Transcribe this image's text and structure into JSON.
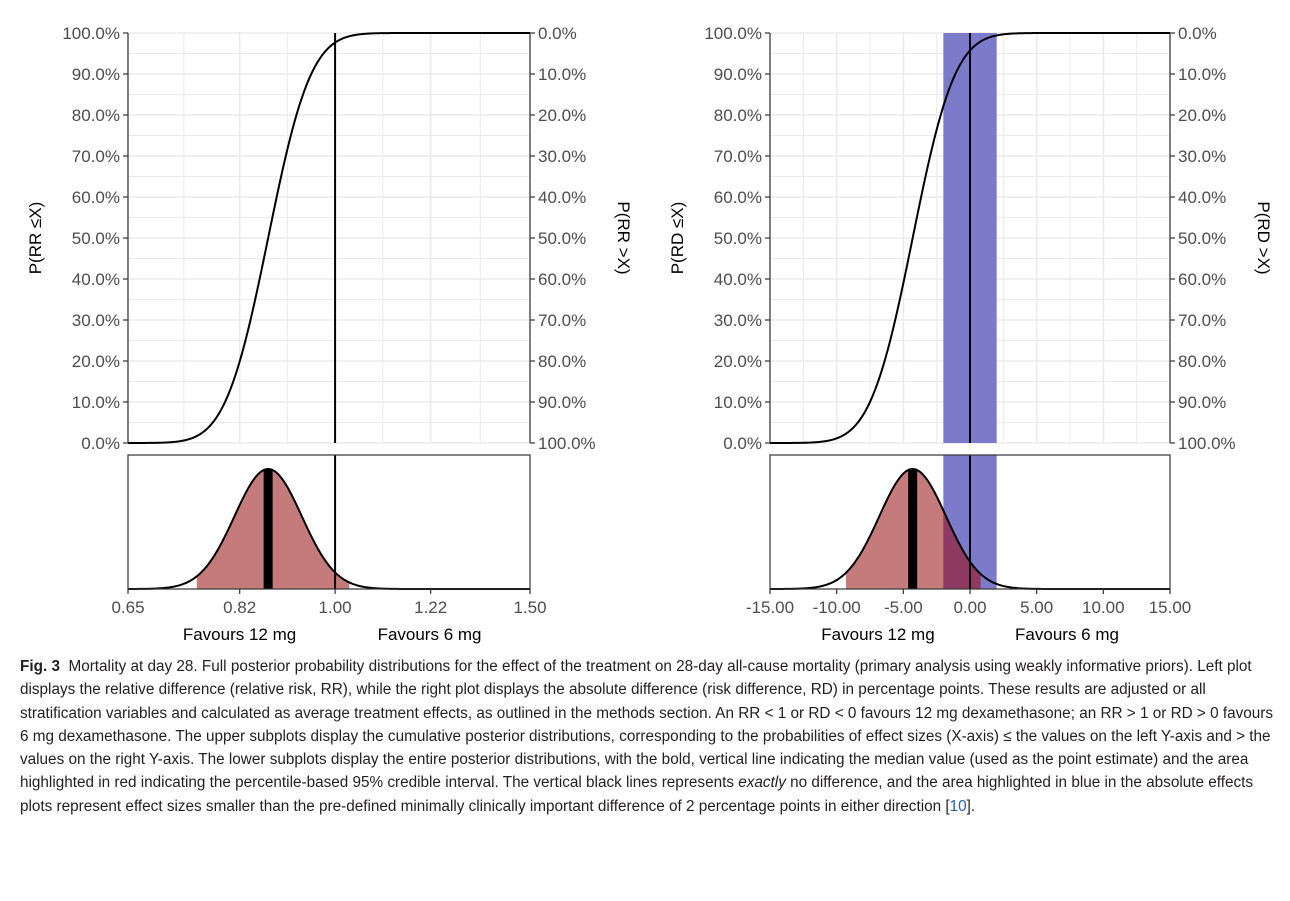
{
  "figure": {
    "label": "Fig. 3",
    "caption_text": "Mortality at day 28. Full posterior probability distributions for the effect of the treatment on 28-day all-cause mortality (primary analysis using weakly informative priors). Left plot displays the relative difference (relative risk, RR), while the right plot displays the absolute difference (risk difference, RD) in percentage points. These results are adjusted or all stratification variables and calculated as average treatment effects, as outlined in the methods section. An RR < 1 or RD < 0 favours 12 mg dexamethasone; an RR > 1 or RD > 0 favours 6 mg dexamethasone. The upper subplots display the cumulative posterior distributions, corresponding to the probabilities of effect sizes (X-axis) ≤ the values on the left Y-axis and > the values on the right Y-axis. The lower subplots display the entire posterior distributions, with the bold, vertical line indicating the median value (used as the point estimate) and the area highlighted in red indicating the percentile-based 95% credible interval. The vertical black lines represents",
    "caption_emph": "exactly",
    "caption_text2": "no difference, and the area highlighted in blue in the absolute effects plots represent effect sizes smaller than the pre-defined minimally clinically important difference of 2 percentage points in either direction [",
    "caption_ref": "10",
    "caption_end": "]."
  },
  "colors": {
    "credible_interval_fill": "#c57b7b",
    "mcid_fill": "#7b7bc9",
    "overlap_fill": "#8e3a62",
    "grid": "#ebebeb",
    "curve": "#000000"
  },
  "chart_data": [
    {
      "type": "line",
      "panel": "left-cumulative",
      "measure": "relative risk (RR)",
      "x_scale": "log",
      "xlim": [
        0.65,
        1.5
      ],
      "ylim": [
        0,
        100
      ],
      "ylabel_left": "P(RR ≤X)",
      "ylabel_right": "P(RR >X)",
      "yticks_left": [
        "100.0%",
        "90.0%",
        "80.0%",
        "70.0%",
        "60.0%",
        "50.0%",
        "40.0%",
        "30.0%",
        "20.0%",
        "10.0%",
        "0.0%"
      ],
      "yticks_right": [
        "0.0%",
        "10.0%",
        "20.0%",
        "30.0%",
        "40.0%",
        "50.0%",
        "60.0%",
        "70.0%",
        "80.0%",
        "90.0%",
        "100.0%"
      ],
      "distribution": {
        "median": 0.87,
        "log_sd": 0.07
      },
      "reference_line_x": 1.0,
      "grid": true
    },
    {
      "type": "area",
      "panel": "left-density",
      "measure": "relative risk (RR)",
      "x_scale": "log",
      "xlim": [
        0.65,
        1.5
      ],
      "xticks": [
        "0.65",
        "0.82",
        "1.00",
        "1.22",
        "1.50"
      ],
      "xtick_values": [
        0.65,
        0.82,
        1.0,
        1.22,
        1.5
      ],
      "median": 0.87,
      "credible_interval_95": [
        0.75,
        1.03
      ],
      "reference_line_x": 1.0,
      "favours_left": "Favours 12 mg",
      "favours_right": "Favours 6 mg"
    },
    {
      "type": "line",
      "panel": "right-cumulative",
      "measure": "risk difference (RD), percentage points",
      "x_scale": "linear",
      "xlim": [
        -15,
        15
      ],
      "ylim": [
        0,
        100
      ],
      "ylabel_left": "P(RD ≤X)",
      "ylabel_right": "P(RD >X)",
      "yticks_left": [
        "100.0%",
        "90.0%",
        "80.0%",
        "70.0%",
        "60.0%",
        "50.0%",
        "40.0%",
        "30.0%",
        "20.0%",
        "10.0%",
        "0.0%"
      ],
      "yticks_right": [
        "0.0%",
        "10.0%",
        "20.0%",
        "30.0%",
        "40.0%",
        "50.0%",
        "60.0%",
        "70.0%",
        "80.0%",
        "90.0%",
        "100.0%"
      ],
      "distribution": {
        "median": -4.3,
        "sd": 2.5
      },
      "mcid_band": [
        -2,
        2
      ],
      "reference_line_x": 0,
      "grid": true
    },
    {
      "type": "area",
      "panel": "right-density",
      "measure": "risk difference (RD), percentage points",
      "x_scale": "linear",
      "xlim": [
        -15,
        15
      ],
      "xticks": [
        "-15.00",
        "-10.00",
        "-5.00",
        "0.00",
        "5.00",
        "10.00",
        "15.00"
      ],
      "xtick_values": [
        -15,
        -10,
        -5,
        0,
        5,
        10,
        15
      ],
      "median": -4.3,
      "credible_interval_95": [
        -9.3,
        0.8
      ],
      "mcid_band": [
        -2,
        2
      ],
      "reference_line_x": 0,
      "favours_left": "Favours 12 mg",
      "favours_right": "Favours 6 mg"
    }
  ]
}
